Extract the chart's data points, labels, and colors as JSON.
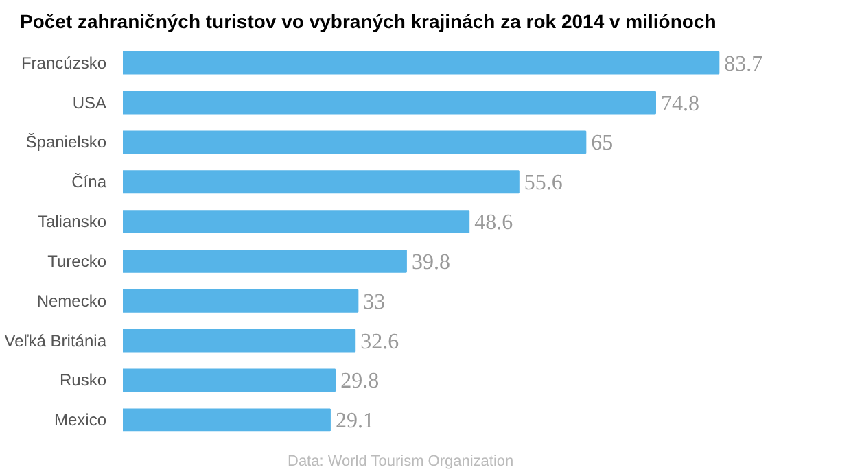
{
  "chart_data": {
    "type": "bar",
    "orientation": "horizontal",
    "title": "Počet zahraničných turistov vo vybraných krajinách za rok 2014 v miliónoch",
    "categories": [
      "Francúzsko",
      "USA",
      "Španielsko",
      "Čína",
      "Taliansko",
      "Turecko",
      "Nemecko",
      "Veľká Británia",
      "Rusko",
      "Mexico"
    ],
    "values": [
      83.7,
      74.8,
      65,
      55.6,
      48.6,
      39.8,
      33,
      32.6,
      29.8,
      29.1
    ],
    "color": "#56b4e8",
    "data_labels": true,
    "grid": false,
    "annotations": [
      "Data: World Tourism Organization"
    ]
  }
}
